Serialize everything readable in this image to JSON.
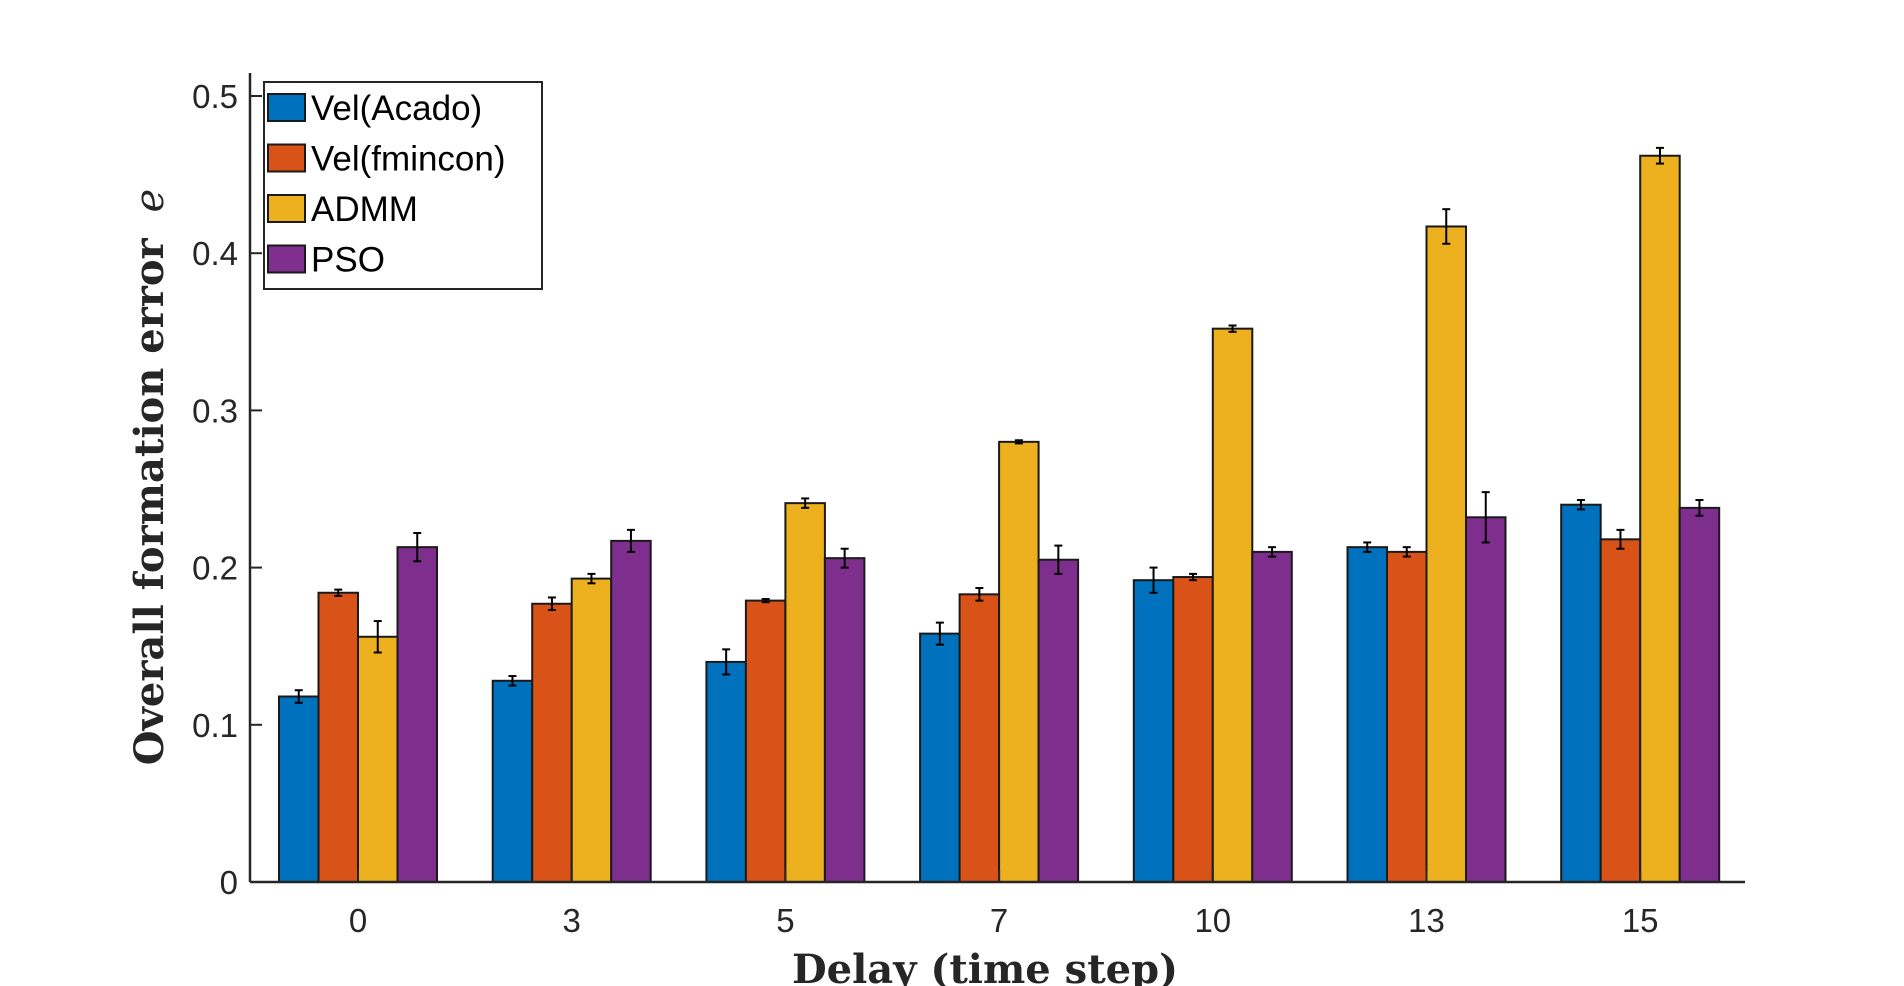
{
  "chart_data": {
    "type": "bar",
    "title": "",
    "xlabel": "Delay (time step)",
    "ylabel": "Overall formation error",
    "ylabel_symbol": "e",
    "categories": [
      "0",
      "3",
      "5",
      "7",
      "10",
      "13",
      "15"
    ],
    "ylim": [
      0,
      0.5
    ],
    "yticks": [
      "0",
      "0.1",
      "0.2",
      "0.3",
      "0.4",
      "0.5"
    ],
    "grid": false,
    "legend_position": "top-left",
    "error_bars": true,
    "series": [
      {
        "name": "Vel(Acado)",
        "color": "#0072BD",
        "values": [
          0.118,
          0.128,
          0.14,
          0.158,
          0.192,
          0.213,
          0.24
        ],
        "errors": [
          0.004,
          0.003,
          0.008,
          0.007,
          0.008,
          0.003,
          0.003
        ]
      },
      {
        "name": "Vel(fmincon)",
        "color": "#D95319",
        "values": [
          0.184,
          0.177,
          0.179,
          0.183,
          0.194,
          0.21,
          0.218
        ],
        "errors": [
          0.002,
          0.004,
          0.001,
          0.004,
          0.002,
          0.003,
          0.006
        ]
      },
      {
        "name": "ADMM",
        "color": "#EDB120",
        "values": [
          0.156,
          0.193,
          0.241,
          0.28,
          0.352,
          0.417,
          0.462
        ],
        "errors": [
          0.01,
          0.003,
          0.003,
          0.001,
          0.002,
          0.011,
          0.005
        ]
      },
      {
        "name": "PSO",
        "color": "#7E2F8E",
        "values": [
          0.213,
          0.217,
          0.206,
          0.205,
          0.21,
          0.232,
          0.238
        ],
        "errors": [
          0.009,
          0.007,
          0.006,
          0.009,
          0.003,
          0.016,
          0.005
        ]
      }
    ]
  }
}
